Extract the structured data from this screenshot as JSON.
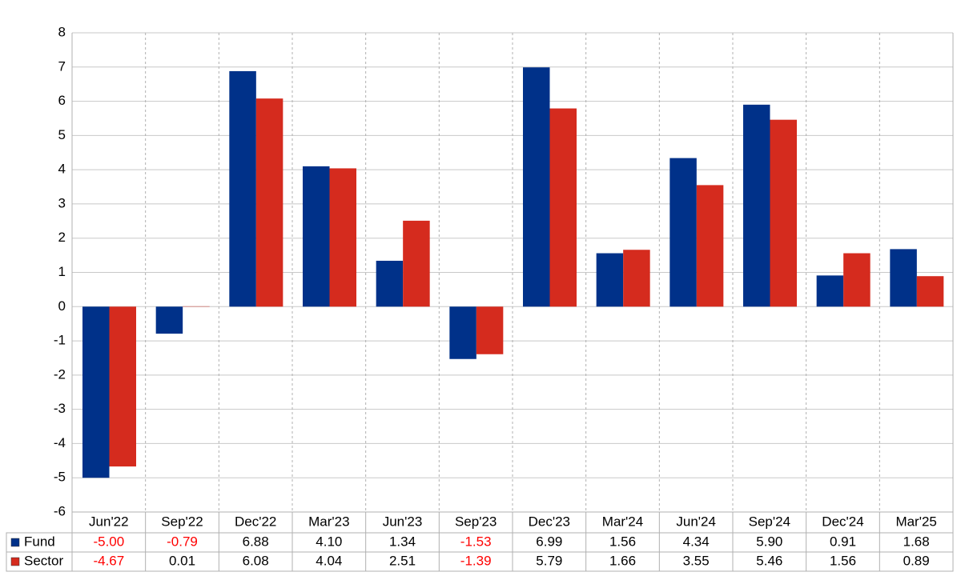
{
  "chart_data": {
    "type": "bar",
    "categories": [
      "Jun'22",
      "Sep'22",
      "Dec'22",
      "Mar'23",
      "Jun'23",
      "Sep'23",
      "Dec'23",
      "Mar'24",
      "Jun'24",
      "Sep'24",
      "Dec'24",
      "Mar'25"
    ],
    "series": [
      {
        "name": "Fund",
        "color": "#003189",
        "values": [
          -5.0,
          -0.79,
          6.88,
          4.1,
          1.34,
          -1.53,
          6.99,
          1.56,
          4.34,
          5.9,
          0.91,
          1.68
        ],
        "value_labels": [
          "-5.00",
          "-0.79",
          "6.88",
          "4.10",
          "1.34",
          "-1.53",
          "6.99",
          "1.56",
          "4.34",
          "5.90",
          "0.91",
          "1.68"
        ]
      },
      {
        "name": "Sector",
        "color": "#d52b1e",
        "values": [
          -4.67,
          0.01,
          6.08,
          4.04,
          2.51,
          -1.39,
          5.79,
          1.66,
          3.55,
          5.46,
          1.56,
          0.89
        ],
        "value_labels": [
          "-4.67",
          "0.01",
          "6.08",
          "4.04",
          "2.51",
          "-1.39",
          "5.79",
          "1.66",
          "3.55",
          "5.46",
          "1.56",
          "0.89"
        ]
      }
    ],
    "ylim": [
      -6,
      8
    ],
    "yticks": [
      -6,
      -5,
      -4,
      -3,
      -2,
      -1,
      0,
      1,
      2,
      3,
      4,
      5,
      6,
      7,
      8
    ],
    "grid": true,
    "negative_label_color": "#ff0000"
  }
}
